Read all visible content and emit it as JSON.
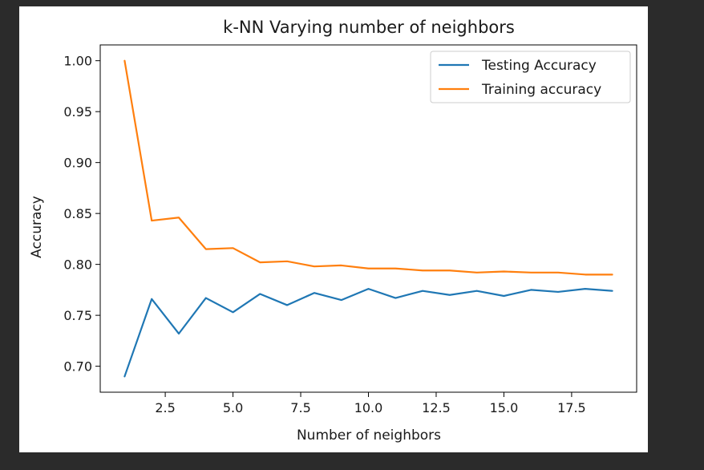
{
  "chart_data": {
    "type": "line",
    "title": "k-NN Varying number of neighbors",
    "xlabel": "Number of neighbors",
    "ylabel": "Accuracy",
    "xlim": [
      0.1,
      19.9
    ],
    "ylim": [
      0.6745,
      1.0155
    ],
    "x": [
      1,
      2,
      3,
      4,
      5,
      6,
      7,
      8,
      9,
      10,
      11,
      12,
      13,
      14,
      15,
      16,
      17,
      18,
      19
    ],
    "x_ticks": [
      2.5,
      5.0,
      7.5,
      10.0,
      12.5,
      15.0,
      17.5
    ],
    "x_tick_labels": [
      "2.5",
      "5.0",
      "7.5",
      "10.0",
      "12.5",
      "15.0",
      "17.5"
    ],
    "y_ticks": [
      0.7,
      0.75,
      0.8,
      0.85,
      0.9,
      0.95,
      1.0
    ],
    "y_tick_labels": [
      "0.70",
      "0.75",
      "0.80",
      "0.85",
      "0.90",
      "0.95",
      "1.00"
    ],
    "grid": false,
    "legend_position": "top-right",
    "series": [
      {
        "name": "Testing Accuracy",
        "color": "#1f77b4",
        "values": [
          0.69,
          0.766,
          0.732,
          0.767,
          0.753,
          0.771,
          0.76,
          0.772,
          0.765,
          0.776,
          0.767,
          0.774,
          0.77,
          0.774,
          0.769,
          0.775,
          0.773,
          0.776,
          0.774
        ]
      },
      {
        "name": "Training accuracy",
        "color": "#ff7f0e",
        "values": [
          1.0,
          0.843,
          0.846,
          0.815,
          0.816,
          0.802,
          0.803,
          0.798,
          0.799,
          0.796,
          0.796,
          0.794,
          0.794,
          0.792,
          0.793,
          0.792,
          0.792,
          0.79,
          0.79
        ]
      }
    ]
  }
}
